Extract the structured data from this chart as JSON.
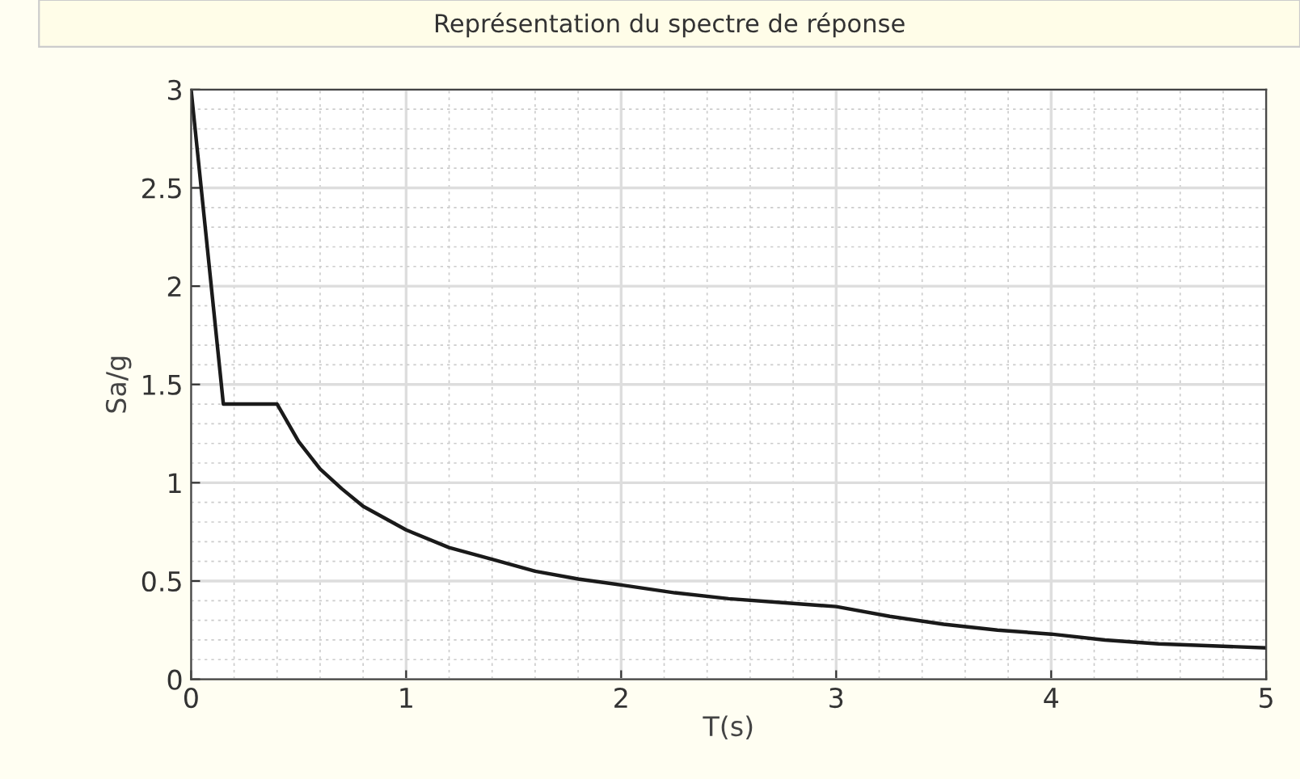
{
  "chart_data": {
    "type": "line",
    "title": "Représentation du spectre de réponse",
    "xlabel": "T(s)",
    "ylabel": "Sa/g",
    "x": [
      0,
      0.15,
      0.4,
      0.5,
      0.6,
      0.7,
      0.8,
      1,
      1.2,
      1.4,
      1.6,
      1.8,
      2,
      2.25,
      2.5,
      2.75,
      3,
      3.25,
      3.5,
      3.75,
      4,
      4.25,
      4.5,
      4.75,
      5
    ],
    "series": [
      {
        "color": "#1a1a1a",
        "values": [
          3,
          1.4,
          1.4,
          1.21,
          1.07,
          0.97,
          0.88,
          0.76,
          0.67,
          0.61,
          0.55,
          0.51,
          0.48,
          0.44,
          0.41,
          0.39,
          0.37,
          0.32,
          0.28,
          0.25,
          0.23,
          0.2,
          0.18,
          0.17,
          0.16
        ]
      }
    ],
    "xlim": [
      0,
      5
    ],
    "ylim": [
      0,
      3
    ],
    "xticks": [
      0,
      1,
      2,
      3,
      4,
      5
    ],
    "yticks": [
      0,
      0.5,
      1,
      1.5,
      2,
      2.5,
      3
    ],
    "grid": true,
    "marker": "none",
    "line_style": "solid"
  }
}
